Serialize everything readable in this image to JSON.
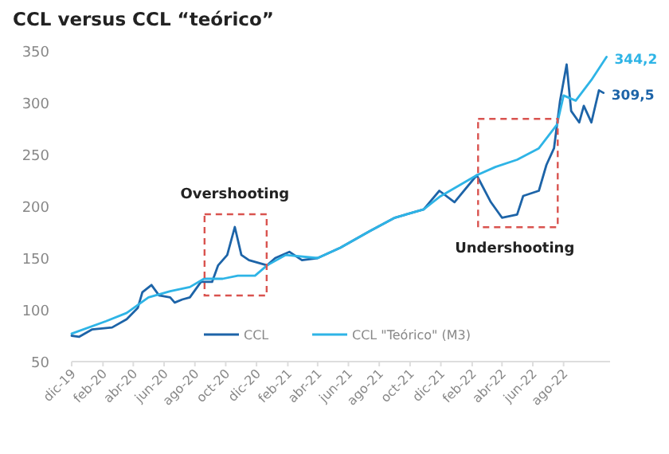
{
  "chart_data": {
    "type": "line",
    "title": "CCL versus CCL “teórico”",
    "xlim": [
      "2019-12-01",
      "2022-11-01"
    ],
    "xticks": [
      {
        "value": "2019-12-01",
        "label": "dic-19"
      },
      {
        "value": "2020-02-01",
        "label": "feb-20"
      },
      {
        "value": "2020-04-01",
        "label": "abr-20"
      },
      {
        "value": "2020-06-01",
        "label": "jun-20"
      },
      {
        "value": "2020-08-01",
        "label": "ago-20"
      },
      {
        "value": "2020-10-01",
        "label": "oct-20"
      },
      {
        "value": "2020-12-01",
        "label": "dic-20"
      },
      {
        "value": "2021-02-01",
        "label": "feb-21"
      },
      {
        "value": "2021-04-01",
        "label": "abr-21"
      },
      {
        "value": "2021-06-01",
        "label": "jun-21"
      },
      {
        "value": "2021-08-01",
        "label": "ago-21"
      },
      {
        "value": "2021-10-01",
        "label": "oct-21"
      },
      {
        "value": "2021-12-01",
        "label": "dic-21"
      },
      {
        "value": "2022-02-01",
        "label": "feb-22"
      },
      {
        "value": "2022-04-01",
        "label": "abr-22"
      },
      {
        "value": "2022-06-01",
        "label": "jun-22"
      },
      {
        "value": "2022-08-01",
        "label": "ago-22"
      }
    ],
    "ylim": [
      50,
      350
    ],
    "yticks": [
      50,
      100,
      150,
      200,
      250,
      300,
      350
    ],
    "grid": false,
    "legend": "bottom",
    "annotations": [
      {
        "text": "Overshooting",
        "x": "2020-10-19",
        "y": 180
      },
      {
        "text": "Undershooting",
        "x": "2022-04-01",
        "y": 189
      }
    ],
    "series": [
      {
        "name": "CCL",
        "color": "#1d64a8",
        "x": [
          "2019-12-01",
          "2019-12-16",
          "2020-01-10",
          "2020-02-19",
          "2020-03-19",
          "2020-04-10",
          "2020-04-19",
          "2020-05-07",
          "2020-05-22",
          "2020-06-13",
          "2020-06-22",
          "2020-07-07",
          "2020-07-22",
          "2020-08-13",
          "2020-09-04",
          "2020-09-16",
          "2020-10-04",
          "2020-10-19",
          "2020-11-01",
          "2020-11-16",
          "2020-12-22",
          "2021-01-07",
          "2021-02-04",
          "2021-03-01",
          "2021-04-01",
          "2021-05-16",
          "2021-07-13",
          "2021-09-01",
          "2021-10-28",
          "2021-11-28",
          "2021-12-28",
          "2022-02-10",
          "2022-03-10",
          "2022-04-01",
          "2022-05-01",
          "2022-05-13",
          "2022-06-13",
          "2022-06-28",
          "2022-07-13",
          "2022-07-25",
          "2022-08-07",
          "2022-08-16",
          "2022-09-01",
          "2022-09-10",
          "2022-09-25",
          "2022-10-10",
          "2022-10-19"
        ],
        "values": [
          75,
          74,
          81,
          83,
          91,
          102,
          117,
          124,
          114,
          112,
          107,
          110,
          112,
          127,
          127,
          143,
          153,
          180,
          153,
          148,
          143,
          150,
          156,
          148,
          150,
          160,
          176,
          189,
          197,
          215,
          204,
          230,
          204,
          189,
          192,
          210,
          215,
          240,
          256,
          302,
          337,
          292,
          281,
          297,
          281,
          312,
          309.5
        ],
        "value_labels": [
          null,
          null,
          null,
          null,
          null,
          null,
          null,
          null,
          null,
          null,
          null,
          null,
          null,
          null,
          null,
          null,
          null,
          null,
          null,
          null,
          null,
          null,
          null,
          null,
          null,
          null,
          null,
          null,
          null,
          null,
          null,
          null,
          null,
          null,
          null,
          null,
          null,
          null,
          null,
          null,
          null,
          null,
          null,
          null,
          null,
          null,
          "309,5"
        ]
      },
      {
        "name": "CCL \"Teórico\" (M3)",
        "color": "#2eb4e6",
        "x": [
          "2019-12-01",
          "2020-02-07",
          "2020-03-19",
          "2020-05-01",
          "2020-06-13",
          "2020-07-22",
          "2020-08-19",
          "2020-09-25",
          "2020-10-25",
          "2020-11-28",
          "2020-12-22",
          "2021-01-28",
          "2021-04-01",
          "2021-05-16",
          "2021-07-13",
          "2021-09-01",
          "2021-10-28",
          "2021-11-28",
          "2022-02-10",
          "2022-03-19",
          "2022-05-01",
          "2022-06-13",
          "2022-07-19",
          "2022-08-01",
          "2022-08-25",
          "2022-09-25",
          "2022-10-25"
        ],
        "values": [
          77,
          89,
          97,
          112,
          118,
          122,
          130,
          130,
          133,
          133,
          143,
          153,
          150,
          160,
          176,
          189,
          197,
          209,
          230,
          238,
          245,
          256,
          279,
          307,
          302,
          322,
          344.2
        ],
        "value_labels": [
          null,
          null,
          null,
          null,
          null,
          null,
          null,
          null,
          null,
          null,
          null,
          null,
          null,
          null,
          null,
          null,
          null,
          null,
          null,
          null,
          null,
          null,
          null,
          null,
          null,
          null,
          "344,2"
        ]
      }
    ]
  }
}
